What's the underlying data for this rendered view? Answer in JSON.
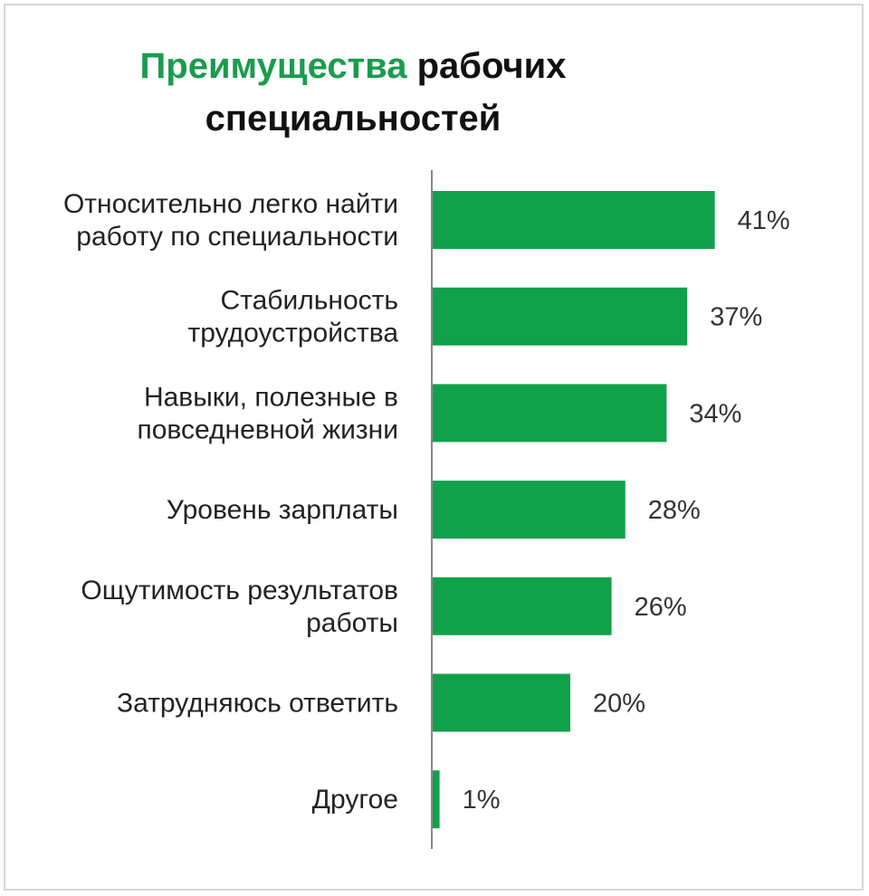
{
  "title": {
    "part1": "Преимущества",
    "part2": " рабочих",
    "part3": "специальностей"
  },
  "colors": {
    "bar": "#12a14b",
    "title_accent": "#1a9c4d",
    "axis": "#888888"
  },
  "chart_data": {
    "type": "bar",
    "orientation": "horizontal",
    "title": "Преимущества рабочих специальностей",
    "categories": [
      [
        "Относительно легко найти",
        "работу по специальности"
      ],
      [
        "Стабильность",
        "трудоустройства"
      ],
      [
        "Навыки, полезные в",
        "повседневной жизни"
      ],
      [
        "Уровень зарплаты"
      ],
      [
        "Ощутимость результатов",
        "работы"
      ],
      [
        "Затрудняюсь ответить"
      ],
      [
        "Другое"
      ]
    ],
    "values": [
      41,
      37,
      34,
      28,
      26,
      20,
      1
    ],
    "value_labels": [
      "41%",
      "37%",
      "34%",
      "28%",
      "26%",
      "20%",
      "1%"
    ],
    "unit": "%",
    "xlim": [
      0,
      100
    ],
    "grid": false,
    "legend": "none"
  }
}
